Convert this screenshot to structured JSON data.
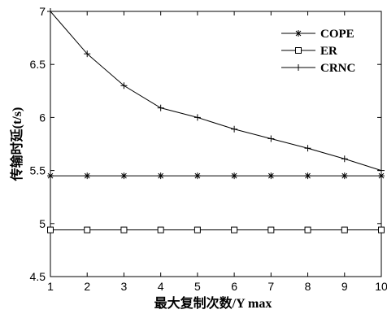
{
  "chart_data": {
    "type": "line",
    "title": "",
    "xlabel": "最大复制次数/Y max",
    "ylabel": "传输时延(t/s)",
    "x": [
      1,
      2,
      3,
      4,
      5,
      6,
      7,
      8,
      9,
      10
    ],
    "xlim": [
      1,
      10
    ],
    "ylim": [
      4.5,
      7
    ],
    "xticks": [
      "1",
      "2",
      "3",
      "4",
      "5",
      "6",
      "7",
      "8",
      "9",
      "10"
    ],
    "yticks": [
      "4.5",
      "5",
      "5.5",
      "6",
      "6.5",
      "7"
    ],
    "grid": false,
    "legend_position": "top-right",
    "series": [
      {
        "name": "COPE",
        "marker": "asterisk",
        "values": [
          5.45,
          5.45,
          5.45,
          5.45,
          5.45,
          5.45,
          5.45,
          5.45,
          5.45,
          5.45
        ]
      },
      {
        "name": "ER",
        "marker": "square",
        "values": [
          4.94,
          4.94,
          4.94,
          4.94,
          4.94,
          4.94,
          4.94,
          4.94,
          4.94,
          4.94
        ]
      },
      {
        "name": "CRNC",
        "marker": "plus",
        "values": [
          7.0,
          6.6,
          6.3,
          6.09,
          6.0,
          5.89,
          5.8,
          5.71,
          5.61,
          5.5
        ]
      }
    ]
  }
}
